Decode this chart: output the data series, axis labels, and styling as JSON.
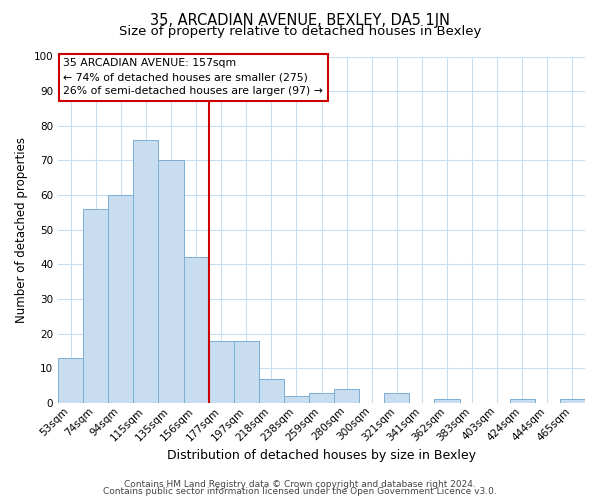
{
  "title": "35, ARCADIAN AVENUE, BEXLEY, DA5 1JN",
  "subtitle": "Size of property relative to detached houses in Bexley",
  "xlabel": "Distribution of detached houses by size in Bexley",
  "ylabel": "Number of detached properties",
  "bar_labels": [
    "53sqm",
    "74sqm",
    "94sqm",
    "115sqm",
    "135sqm",
    "156sqm",
    "177sqm",
    "197sqm",
    "218sqm",
    "238sqm",
    "259sqm",
    "280sqm",
    "300sqm",
    "321sqm",
    "341sqm",
    "362sqm",
    "383sqm",
    "403sqm",
    "424sqm",
    "444sqm",
    "465sqm"
  ],
  "bar_values": [
    13,
    56,
    60,
    76,
    70,
    42,
    18,
    18,
    7,
    2,
    3,
    4,
    0,
    3,
    0,
    1,
    0,
    0,
    1,
    0,
    1
  ],
  "bar_color": "#c8ddf0",
  "bar_edge_color": "#7bafd4",
  "vline_x": 5.5,
  "vline_color": "#cc0000",
  "annotation_text": "35 ARCADIAN AVENUE: 157sqm\n← 74% of detached houses are smaller (275)\n26% of semi-detached houses are larger (97) →",
  "annotation_box_color": "#ffffff",
  "annotation_box_edge_color": "#cc0000",
  "ylim": [
    0,
    100
  ],
  "footer_line1": "Contains HM Land Registry data © Crown copyright and database right 2024.",
  "footer_line2": "Contains public sector information licensed under the Open Government Licence v3.0.",
  "background_color": "#ffffff",
  "grid_color": "#c8ddf0",
  "title_fontsize": 10.5,
  "subtitle_fontsize": 9.5,
  "xlabel_fontsize": 9,
  "ylabel_fontsize": 8.5,
  "tick_fontsize": 7.5,
  "footer_fontsize": 6.5,
  "annot_fontsize": 7.8
}
